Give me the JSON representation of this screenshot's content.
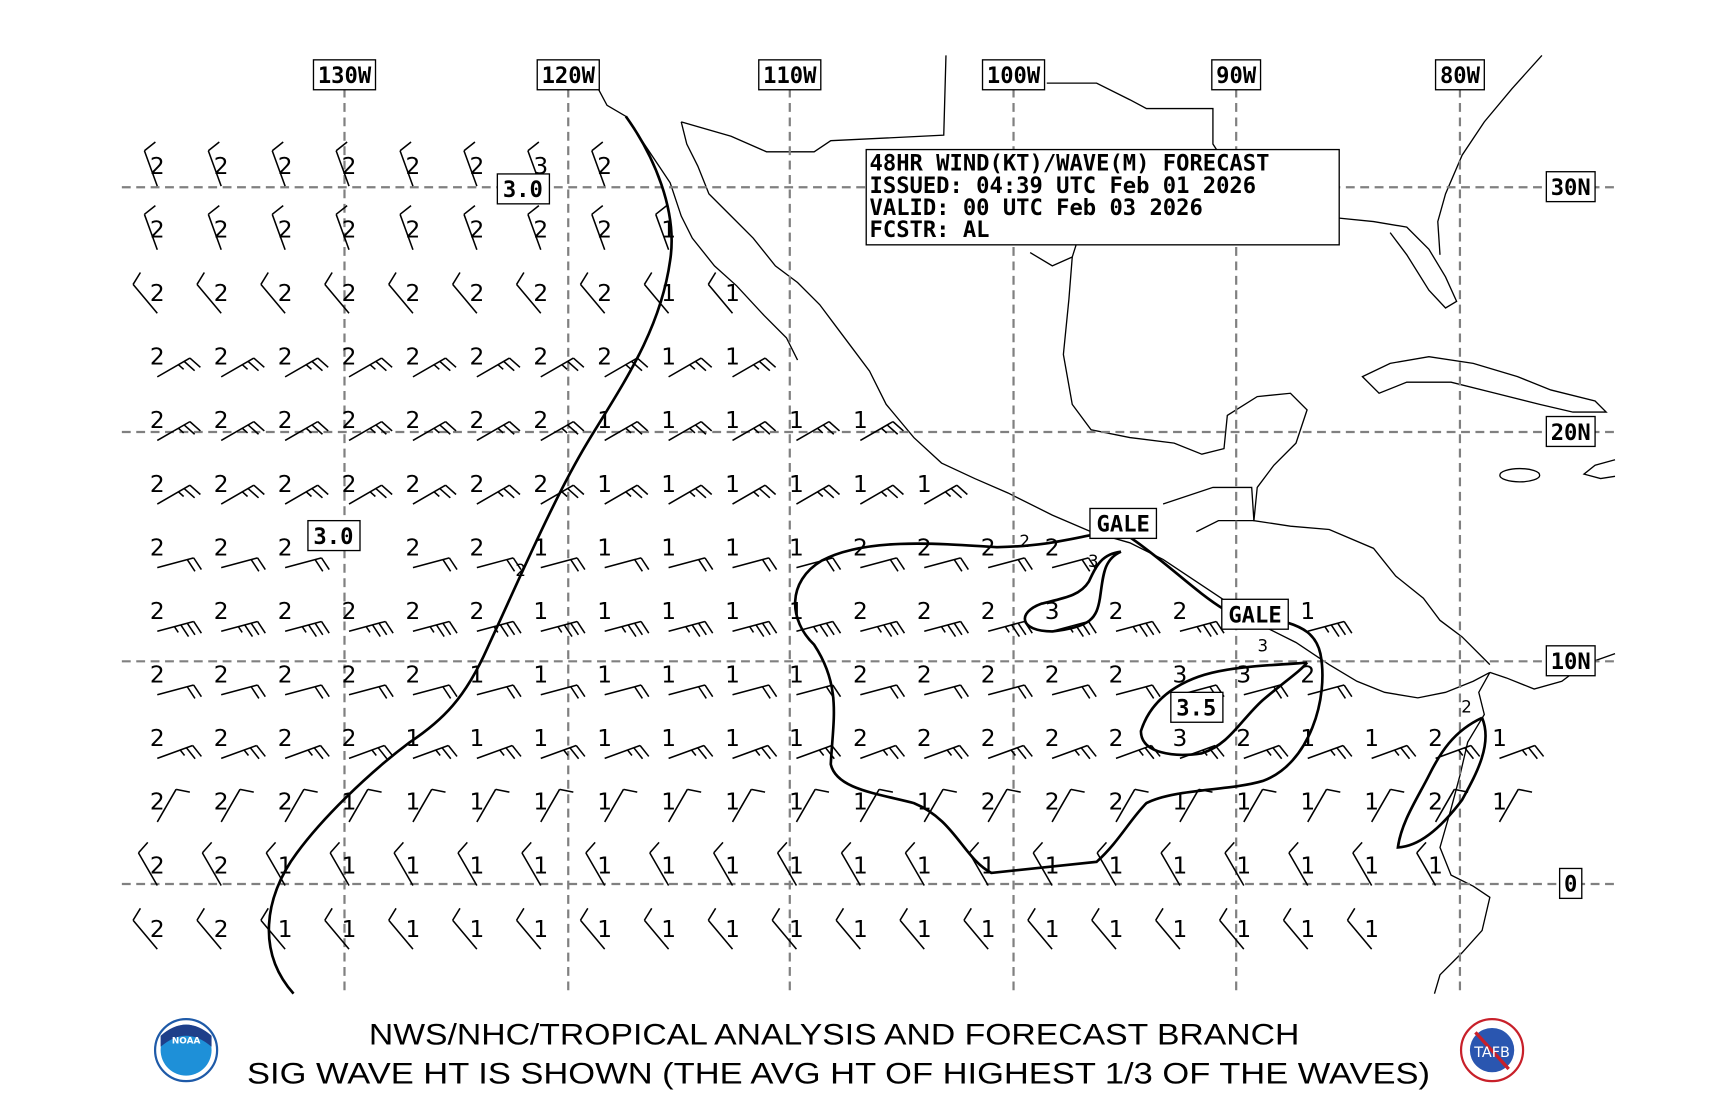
{
  "forecast_box": {
    "lines": [
      "48HR WIND(KT)/WAVE(M) FORECAST",
      "ISSUED: 04:39 UTC Feb 01 2026",
      "VALID: 00 UTC Feb 03 2026",
      "FCSTR: AL"
    ]
  },
  "grid": {
    "lon_labels": [
      "130W",
      "120W",
      "110W",
      "100W",
      "90W",
      "80W"
    ],
    "lat_labels": [
      "30N",
      "20N",
      "10N",
      "0"
    ]
  },
  "labels": {
    "gale_1": "GALE",
    "gale_2": "GALE",
    "max_west_north": "3.0",
    "max_west_south": "3.0",
    "max_east": "3.5"
  },
  "contour_labels": [
    "2",
    "2",
    "3",
    "3",
    "2"
  ],
  "wave_heights_m": [
    [
      2,
      2,
      2,
      2,
      2,
      2,
      3,
      2
    ],
    [
      2,
      2,
      2,
      2,
      2,
      2,
      2,
      2,
      1
    ],
    [
      2,
      2,
      2,
      2,
      2,
      2,
      2,
      2,
      1,
      1
    ],
    [
      2,
      2,
      2,
      2,
      2,
      2,
      2,
      2,
      1,
      1
    ],
    [
      2,
      2,
      2,
      2,
      2,
      2,
      2,
      1,
      1,
      1,
      1,
      1
    ],
    [
      2,
      2,
      2,
      2,
      2,
      2,
      2,
      1,
      1,
      1,
      1,
      1,
      1
    ],
    [
      2,
      2,
      2,
      null,
      2,
      2,
      1,
      1,
      1,
      1,
      1,
      2,
      2,
      2,
      2
    ],
    [
      2,
      2,
      2,
      2,
      2,
      2,
      1,
      1,
      1,
      1,
      1,
      2,
      2,
      2,
      3,
      2,
      2,
      null,
      1
    ],
    [
      2,
      2,
      2,
      2,
      2,
      1,
      1,
      1,
      1,
      1,
      1,
      2,
      2,
      2,
      2,
      2,
      3,
      3,
      2
    ],
    [
      2,
      2,
      2,
      2,
      1,
      1,
      1,
      1,
      1,
      1,
      1,
      2,
      2,
      2,
      2,
      2,
      3,
      2,
      1,
      1,
      2,
      1
    ],
    [
      2,
      2,
      2,
      1,
      1,
      1,
      1,
      1,
      1,
      1,
      1,
      1,
      1,
      2,
      2,
      2,
      1,
      1,
      1,
      1,
      2,
      1
    ],
    [
      2,
      2,
      1,
      1,
      1,
      1,
      1,
      1,
      1,
      1,
      1,
      1,
      1,
      1,
      1,
      1,
      1,
      1,
      1,
      1,
      1
    ],
    [
      2,
      2,
      1,
      1,
      1,
      1,
      1,
      1,
      1,
      1,
      1,
      1,
      1,
      1,
      1,
      1,
      1,
      1,
      1,
      1
    ]
  ],
  "wind_by_row": [
    {
      "dir_deg": 340,
      "speed_kt": 10
    },
    {
      "dir_deg": 340,
      "speed_kt": 10
    },
    {
      "dir_deg": 320,
      "speed_kt": 10
    },
    {
      "dir_deg": 60,
      "speed_kt": 15
    },
    {
      "dir_deg": 60,
      "speed_kt": 15
    },
    {
      "dir_deg": 60,
      "speed_kt": 15
    },
    {
      "dir_deg": 75,
      "speed_kt": 20
    },
    {
      "dir_deg": 75,
      "speed_kt": 25
    },
    {
      "dir_deg": 75,
      "speed_kt": 20
    },
    {
      "dir_deg": 70,
      "speed_kt": 15
    },
    {
      "dir_deg": 30,
      "speed_kt": 10
    },
    {
      "dir_deg": 330,
      "speed_kt": 10
    },
    {
      "dir_deg": 320,
      "speed_kt": 10
    }
  ],
  "footer": {
    "line1": "NWS/NHC/TROPICAL ANALYSIS AND FORECAST BRANCH",
    "line2": "SIG WAVE HT IS SHOWN (THE AVG HT OF HIGHEST 1/3 OF THE WAVES)"
  },
  "logos": {
    "left": "NOAA",
    "right": "TAFB"
  },
  "colors": {
    "grid": "#808080",
    "noaa_blue": "#1e5aa8",
    "tafb_red": "#c8202a"
  }
}
